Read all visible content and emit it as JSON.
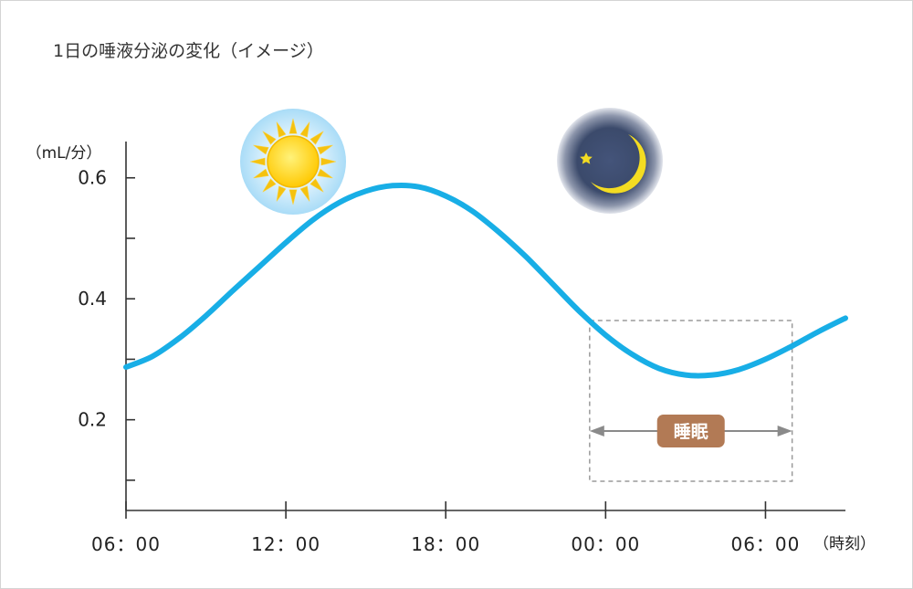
{
  "colors": {
    "curve": "#18aee6",
    "axis": "#333333",
    "sleep_box": "#9a9a9a",
    "sleep_arrow": "#8a8a8a",
    "sleep_badge": "#b27a55",
    "sun_core": "#ffd21a",
    "sun_rays": "#f5c20f",
    "sun_glow": "#bfe6fb",
    "moon": "#f3dc22",
    "night_sky": "#3e4e70"
  },
  "icons": {
    "day": "sun-icon",
    "night": "moon-icon"
  },
  "chart_data": {
    "type": "line",
    "title": "1日の唾液分泌の変化（イメージ）",
    "ylabel": "（mL/分）",
    "xlabel": "（時刻）",
    "ylim": [
      0.05,
      0.66
    ],
    "xlim": [
      0,
      27
    ],
    "y_ticks": [
      0.6,
      0.4,
      0.2
    ],
    "y_tick_labels": [
      "0.6",
      "0.4",
      "0.2"
    ],
    "y_minor_ticks": [
      0.1,
      0.3,
      0.5
    ],
    "x_ticks": [
      0,
      6,
      12,
      18,
      24
    ],
    "x_tick_labels": [
      "06：00",
      "12：00",
      "18：00",
      "00：00",
      "06：00"
    ],
    "grid": false,
    "legend": "none",
    "series": [
      {
        "x": [
          0,
          1,
          2,
          3,
          4,
          5,
          6,
          7,
          8,
          9,
          10,
          11,
          12,
          13,
          14,
          15,
          16,
          17,
          18,
          19,
          20,
          21,
          22,
          23,
          24,
          25,
          26,
          27
        ],
        "values": [
          0.287,
          0.305,
          0.335,
          0.372,
          0.413,
          0.453,
          0.493,
          0.53,
          0.559,
          0.578,
          0.587,
          0.585,
          0.57,
          0.545,
          0.51,
          0.47,
          0.425,
          0.38,
          0.34,
          0.308,
          0.285,
          0.274,
          0.274,
          0.283,
          0.3,
          0.322,
          0.346,
          0.368
        ]
      }
    ],
    "annotations": [
      {
        "type": "range",
        "label": "睡眠",
        "x_start": 17.4,
        "x_end": 25.0
      }
    ]
  }
}
